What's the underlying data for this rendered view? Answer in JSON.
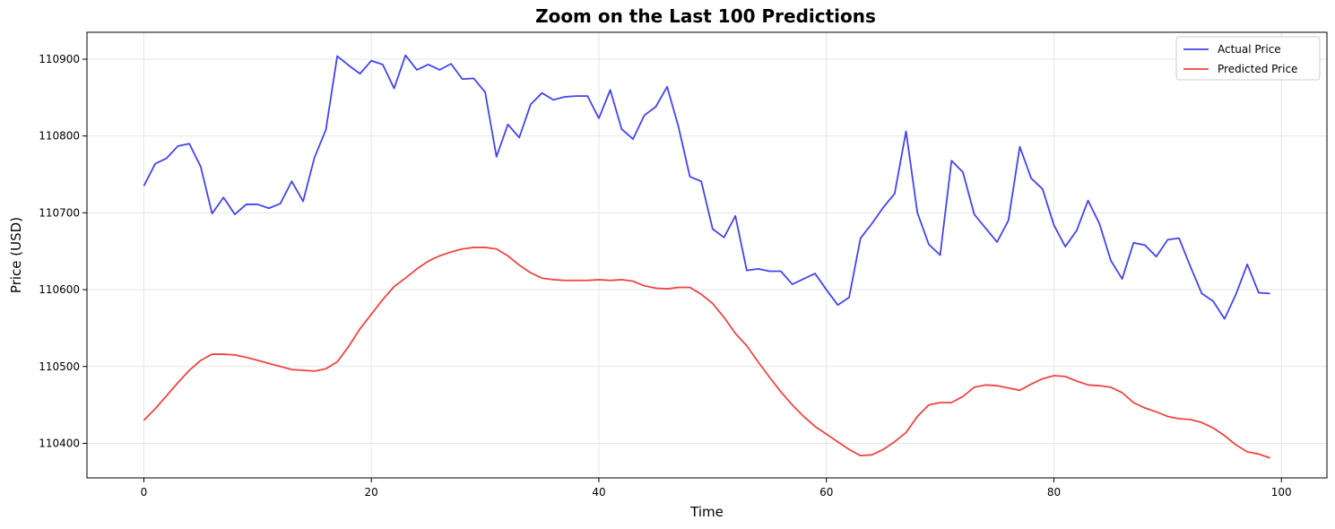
{
  "chart_data": {
    "type": "line",
    "title": "Zoom on the Last 100 Predictions",
    "xlabel": "Time",
    "ylabel": "Price (USD)",
    "xlim": [
      -5,
      104
    ],
    "ylim": [
      110355,
      110935
    ],
    "xticks": [
      0,
      20,
      40,
      60,
      80,
      100
    ],
    "yticks": [
      110400,
      110500,
      110600,
      110700,
      110800,
      110900
    ],
    "grid": true,
    "legend_position": "top-right",
    "series": [
      {
        "name": "Actual Price",
        "color": "#4444ee",
        "x_start": 0,
        "values": [
          110735,
          110764,
          110771,
          110787,
          110790,
          110760,
          110699,
          110720,
          110698,
          110711,
          110711,
          110706,
          110712,
          110741,
          110715,
          110772,
          110808,
          110904,
          110892,
          110881,
          110898,
          110893,
          110862,
          110905,
          110886,
          110893,
          110886,
          110894,
          110874,
          110875,
          110857,
          110773,
          110815,
          110798,
          110841,
          110856,
          110847,
          110851,
          110852,
          110852,
          110823,
          110860,
          110809,
          110796,
          110827,
          110838,
          110864,
          110812,
          110747,
          110741,
          110679,
          110668,
          110696,
          110625,
          110627,
          110624,
          110624,
          110607,
          110614,
          110621,
          110600,
          110580,
          110590,
          110667,
          110686,
          110707,
          110725,
          110806,
          110700,
          110659,
          110645,
          110768,
          110753,
          110698,
          110680,
          110662,
          110690,
          110786,
          110745,
          110731,
          110684,
          110656,
          110677,
          110716,
          110686,
          110638,
          110614,
          110661,
          110658,
          110643,
          110665,
          110667,
          110630,
          110595,
          110585,
          110562,
          110594,
          110633,
          110596,
          110595
        ]
      },
      {
        "name": "Predicted Price",
        "color": "#ee4444",
        "x_start": 0,
        "values": [
          110430,
          110445,
          110462,
          110479,
          110495,
          110508,
          110516,
          110516,
          110515,
          110512,
          110508,
          110504,
          110500,
          110496,
          110495,
          110494,
          110497,
          110506,
          110526,
          110549,
          110568,
          110587,
          110604,
          110615,
          110627,
          110637,
          110644,
          110649,
          110653,
          110655,
          110655,
          110653,
          110644,
          110632,
          110622,
          110615,
          110613,
          110612,
          110612,
          110612,
          110613,
          110612,
          110613,
          110611,
          110605,
          110602,
          110601,
          110603,
          110603,
          110594,
          110582,
          110564,
          110543,
          110527,
          110506,
          110486,
          110467,
          110450,
          110435,
          110422,
          110412,
          110402,
          110392,
          110384,
          110385,
          110392,
          110402,
          110414,
          110435,
          110450,
          110453,
          110453,
          110461,
          110473,
          110476,
          110475,
          110472,
          110469,
          110477,
          110484,
          110488,
          110487,
          110481,
          110476,
          110475,
          110473,
          110466,
          110453,
          110446,
          110441,
          110435,
          110432,
          110431,
          110427,
          110420,
          110410,
          110398,
          110389,
          110386,
          110381
        ]
      }
    ]
  }
}
